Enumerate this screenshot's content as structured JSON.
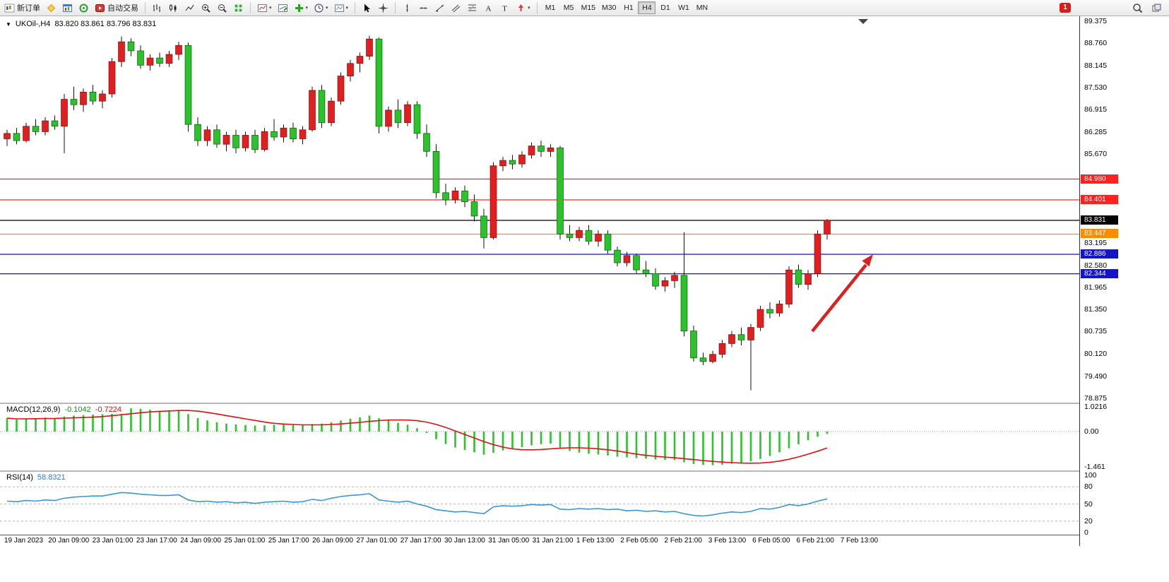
{
  "toolbar": {
    "new_order_label": "新订单",
    "auto_trading_label": "自动交易",
    "timeframes": [
      "M1",
      "M5",
      "M15",
      "M30",
      "H1",
      "H4",
      "D1",
      "W1",
      "MN"
    ],
    "active_timeframe": "H4",
    "notification_badge": "1"
  },
  "chart": {
    "symbol_title": "UKOil-,H4",
    "ohlc_title": "83.820 83.861 83.796 83.831"
  },
  "macd_label": {
    "name": "MACD(12,26,9)",
    "main_value": "-0.1042",
    "signal_value": "-0.7224"
  },
  "rsi_label": {
    "name": "RSI(14)",
    "value": "58.8321"
  },
  "chart_data": {
    "type": "candlestick",
    "symbol": "UKOil-",
    "timeframe": "H4",
    "colors": {
      "up": "#e02020",
      "down": "#2dc22d",
      "wick": "#111111",
      "macd_hist": "#2dc22d",
      "macd_signal": "#e01010",
      "rsi_line": "#3a97d4",
      "arrow": "#dd1f1f",
      "level_red": "#ff2020",
      "level_orange": "#ff8c00",
      "level_blue": "#1414cc",
      "level_black": "#000000"
    },
    "price_axis": {
      "min": 78.875,
      "max": 89.375,
      "ticks": [
        {
          "label": "89.375",
          "value": 89.375
        },
        {
          "label": "88.760",
          "value": 88.76
        },
        {
          "label": "88.145",
          "value": 88.145
        },
        {
          "label": "87.530",
          "value": 87.53
        },
        {
          "label": "86.915",
          "value": 86.915
        },
        {
          "label": "86.285",
          "value": 86.285
        },
        {
          "label": "85.670",
          "value": 85.67
        },
        {
          "label": "83.195",
          "value": 83.195
        },
        {
          "label": "82.580",
          "value": 82.58
        },
        {
          "label": "81.965",
          "value": 81.965
        },
        {
          "label": "81.350",
          "value": 81.35
        },
        {
          "label": "80.735",
          "value": 80.735
        },
        {
          "label": "80.120",
          "value": 80.12
        },
        {
          "label": "79.490",
          "value": 79.49
        },
        {
          "label": "78.875",
          "value": 78.875
        }
      ]
    },
    "levels": [
      {
        "label": "84.980",
        "value": 84.98,
        "color": "#ff2020"
      },
      {
        "label": "84.401",
        "value": 84.401,
        "color": "#ff2020"
      },
      {
        "label": "83.831",
        "value": 83.831,
        "color": "#000000"
      },
      {
        "label": "83.447",
        "value": 83.447,
        "color": "#ff8c00"
      },
      {
        "label": "82.886",
        "value": 82.886,
        "color": "#1414cc"
      },
      {
        "label": "82.344",
        "value": 82.344,
        "color": "#1414cc"
      }
    ],
    "candles": [
      [
        86.1,
        86.35,
        85.9,
        86.25
      ],
      [
        86.25,
        86.4,
        85.95,
        86.05
      ],
      [
        86.05,
        86.55,
        86.0,
        86.45
      ],
      [
        86.45,
        86.65,
        86.2,
        86.3
      ],
      [
        86.3,
        86.7,
        86.2,
        86.6
      ],
      [
        86.6,
        86.75,
        86.35,
        86.45
      ],
      [
        86.45,
        87.35,
        85.7,
        87.2
      ],
      [
        87.2,
        87.55,
        86.9,
        87.05
      ],
      [
        87.05,
        87.5,
        86.85,
        87.4
      ],
      [
        87.4,
        87.6,
        87.05,
        87.15
      ],
      [
        87.15,
        87.45,
        86.95,
        87.35
      ],
      [
        87.35,
        88.35,
        87.25,
        88.25
      ],
      [
        88.25,
        88.95,
        88.1,
        88.8
      ],
      [
        88.8,
        88.9,
        88.4,
        88.55
      ],
      [
        88.55,
        88.7,
        88.05,
        88.15
      ],
      [
        88.15,
        88.45,
        88.0,
        88.35
      ],
      [
        88.35,
        88.5,
        88.1,
        88.2
      ],
      [
        88.2,
        88.55,
        88.1,
        88.45
      ],
      [
        88.45,
        88.8,
        88.3,
        88.7
      ],
      [
        88.7,
        88.78,
        86.3,
        86.5
      ],
      [
        86.5,
        86.7,
        85.9,
        86.05
      ],
      [
        86.05,
        86.45,
        85.9,
        86.35
      ],
      [
        86.35,
        86.5,
        85.85,
        85.95
      ],
      [
        85.95,
        86.3,
        85.75,
        86.2
      ],
      [
        86.2,
        86.35,
        85.7,
        85.85
      ],
      [
        85.85,
        86.3,
        85.75,
        86.2
      ],
      [
        86.2,
        86.35,
        85.7,
        85.8
      ],
      [
        85.8,
        86.4,
        85.75,
        86.3
      ],
      [
        86.3,
        86.65,
        86.05,
        86.15
      ],
      [
        86.15,
        86.5,
        86.0,
        86.4
      ],
      [
        86.4,
        86.55,
        86.0,
        86.1
      ],
      [
        86.1,
        86.45,
        85.95,
        86.35
      ],
      [
        86.35,
        87.55,
        86.3,
        87.45
      ],
      [
        87.45,
        87.6,
        86.4,
        86.55
      ],
      [
        86.55,
        87.25,
        86.45,
        87.15
      ],
      [
        87.15,
        87.95,
        87.05,
        87.85
      ],
      [
        87.85,
        88.3,
        87.7,
        88.2
      ],
      [
        88.2,
        88.5,
        87.95,
        88.4
      ],
      [
        88.4,
        88.97,
        88.3,
        88.88
      ],
      [
        88.88,
        88.92,
        86.25,
        86.45
      ],
      [
        86.45,
        87.0,
        86.3,
        86.9
      ],
      [
        86.9,
        87.2,
        86.4,
        86.55
      ],
      [
        86.55,
        87.15,
        86.45,
        87.05
      ],
      [
        87.05,
        87.15,
        86.1,
        86.25
      ],
      [
        86.25,
        86.5,
        85.6,
        85.75
      ],
      [
        85.75,
        85.95,
        84.45,
        84.6
      ],
      [
        84.6,
        84.85,
        84.25,
        84.4
      ],
      [
        84.4,
        84.75,
        84.3,
        84.65
      ],
      [
        84.65,
        84.8,
        84.2,
        84.35
      ],
      [
        84.35,
        84.55,
        83.8,
        83.95
      ],
      [
        83.95,
        84.15,
        83.05,
        83.35
      ],
      [
        83.35,
        85.45,
        83.3,
        85.35
      ],
      [
        85.35,
        85.6,
        85.2,
        85.5
      ],
      [
        85.5,
        85.65,
        85.25,
        85.4
      ],
      [
        85.4,
        85.75,
        85.3,
        85.65
      ],
      [
        85.65,
        86.0,
        85.55,
        85.9
      ],
      [
        85.9,
        86.05,
        85.6,
        85.75
      ],
      [
        85.75,
        85.95,
        85.6,
        85.85
      ],
      [
        85.85,
        85.9,
        83.3,
        83.45
      ],
      [
        83.45,
        83.7,
        83.25,
        83.35
      ],
      [
        83.35,
        83.65,
        83.25,
        83.55
      ],
      [
        83.55,
        83.7,
        83.15,
        83.25
      ],
      [
        83.25,
        83.55,
        83.1,
        83.45
      ],
      [
        83.45,
        83.55,
        82.9,
        83.0
      ],
      [
        83.0,
        83.1,
        82.55,
        82.65
      ],
      [
        82.65,
        82.95,
        82.55,
        82.85
      ],
      [
        82.85,
        82.9,
        82.35,
        82.45
      ],
      [
        82.45,
        82.7,
        82.25,
        82.35
      ],
      [
        82.35,
        82.5,
        81.9,
        82.0
      ],
      [
        82.0,
        82.25,
        81.85,
        82.15
      ],
      [
        82.15,
        82.4,
        81.95,
        82.3
      ],
      [
        82.3,
        83.5,
        80.6,
        80.75
      ],
      [
        80.75,
        80.9,
        79.9,
        80.0
      ],
      [
        80.0,
        80.15,
        79.8,
        79.9
      ],
      [
        79.9,
        80.2,
        79.85,
        80.1
      ],
      [
        80.1,
        80.5,
        80.0,
        80.4
      ],
      [
        80.4,
        80.75,
        80.3,
        80.65
      ],
      [
        80.65,
        80.85,
        80.35,
        80.5
      ],
      [
        80.5,
        80.95,
        79.1,
        80.85
      ],
      [
        80.85,
        81.45,
        80.75,
        81.35
      ],
      [
        81.35,
        81.55,
        81.1,
        81.25
      ],
      [
        81.25,
        81.6,
        81.15,
        81.5
      ],
      [
        81.5,
        82.55,
        81.4,
        82.45
      ],
      [
        82.45,
        82.6,
        81.95,
        82.05
      ],
      [
        82.05,
        82.45,
        81.9,
        82.35
      ],
      [
        82.35,
        83.55,
        82.25,
        83.45
      ],
      [
        83.45,
        83.87,
        83.3,
        83.83
      ]
    ],
    "time_labels": [
      "19 Jan 2023",
      "20 Jan 09:00",
      "23 Jan 01:00",
      "23 Jan 17:00",
      "24 Jan 09:00",
      "25 Jan 01:00",
      "25 Jan 17:00",
      "26 Jan 09:00",
      "27 Jan 01:00",
      "27 Jan 17:00",
      "30 Jan 13:00",
      "31 Jan 05:00",
      "31 Jan 21:00",
      "1 Feb 13:00",
      "2 Feb 05:00",
      "2 Feb 21:00",
      "3 Feb 13:00",
      "6 Feb 05:00",
      "6 Feb 21:00",
      "7 Feb 13:00"
    ],
    "macd": {
      "range_top": 1.0216,
      "range_bottom": -1.461,
      "scale_ticks": [
        {
          "label": "1.0216",
          "value": 1.0216
        },
        {
          "label": "0.00",
          "value": 0
        },
        {
          "label": "-1.461",
          "value": -1.461
        }
      ],
      "histogram": [
        0.55,
        0.5,
        0.52,
        0.55,
        0.58,
        0.55,
        0.62,
        0.66,
        0.68,
        0.7,
        0.72,
        0.82,
        0.92,
        0.96,
        0.94,
        0.9,
        0.86,
        0.84,
        0.88,
        0.72,
        0.56,
        0.46,
        0.38,
        0.33,
        0.29,
        0.27,
        0.25,
        0.26,
        0.28,
        0.29,
        0.27,
        0.26,
        0.31,
        0.33,
        0.38,
        0.46,
        0.53,
        0.59,
        0.66,
        0.55,
        0.46,
        0.36,
        0.28,
        0.14,
        -0.06,
        -0.32,
        -0.52,
        -0.66,
        -0.76,
        -0.86,
        -0.96,
        -0.88,
        -0.78,
        -0.7,
        -0.64,
        -0.57,
        -0.52,
        -0.5,
        -0.66,
        -0.8,
        -0.87,
        -0.92,
        -0.95,
        -0.99,
        -1.04,
        -1.07,
        -1.1,
        -1.12,
        -1.15,
        -1.17,
        -1.18,
        -1.27,
        -1.34,
        -1.38,
        -1.39,
        -1.37,
        -1.33,
        -1.29,
        -1.23,
        -1.13,
        -1.01,
        -0.86,
        -0.69,
        -0.53,
        -0.36,
        -0.21,
        -0.1
      ]
    },
    "rsi": {
      "scale_ticks": [
        {
          "label": "100",
          "value": 100
        },
        {
          "label": "80",
          "value": 80
        },
        {
          "label": "50",
          "value": 50
        },
        {
          "label": "20",
          "value": 20
        },
        {
          "label": "0",
          "value": 0
        }
      ],
      "guide_levels": [
        80,
        50,
        20
      ],
      "values": [
        55,
        54,
        56,
        55,
        57,
        56,
        60,
        62,
        63,
        64,
        64,
        67,
        70,
        69,
        67,
        66,
        65,
        65,
        66,
        57,
        54,
        55,
        53,
        54,
        52,
        53,
        51,
        53,
        54,
        55,
        53,
        54,
        58,
        56,
        60,
        63,
        65,
        66,
        68,
        57,
        55,
        53,
        55,
        50,
        46,
        40,
        38,
        36,
        37,
        35,
        33,
        45,
        47,
        46,
        47,
        49,
        48,
        49,
        41,
        40,
        42,
        41,
        42,
        40,
        41,
        38,
        39,
        37,
        38,
        36,
        37,
        33,
        30,
        29,
        31,
        34,
        36,
        35,
        37,
        42,
        41,
        44,
        49,
        47,
        50,
        55,
        58.83
      ]
    }
  }
}
